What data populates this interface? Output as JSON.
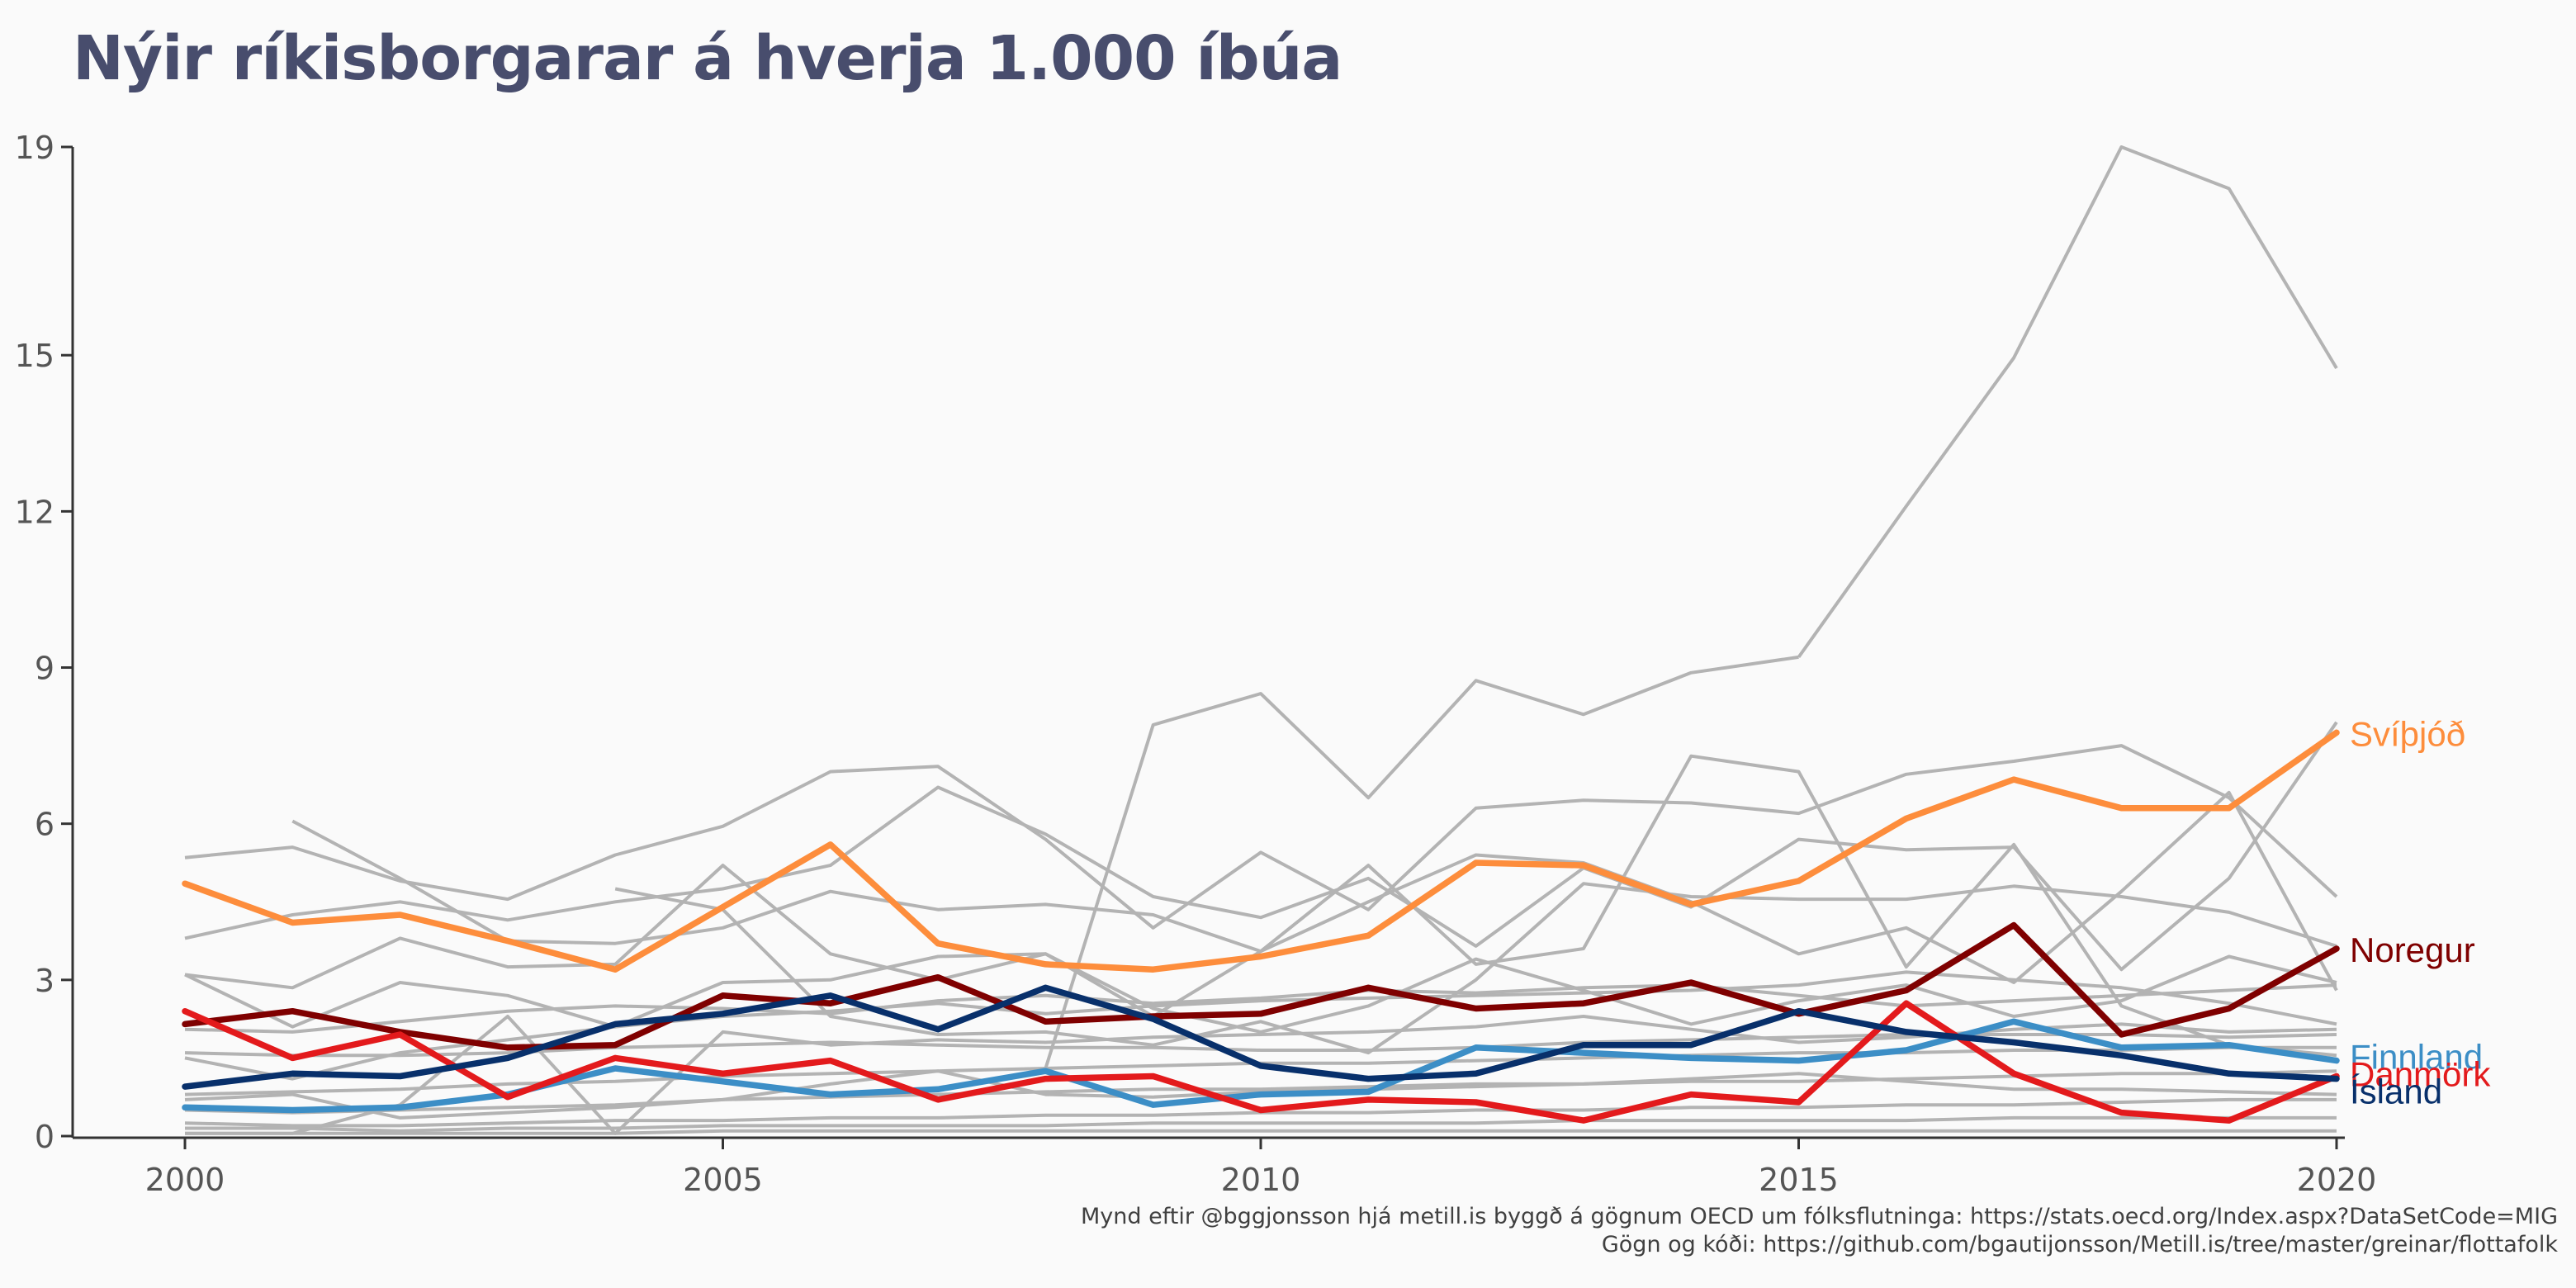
{
  "chart_data": {
    "type": "line",
    "title": "Nýir ríkisborgarar á hverja 1.000 íbúa",
    "xlabel": "",
    "ylabel": "",
    "x": [
      2000,
      2001,
      2002,
      2003,
      2004,
      2005,
      2006,
      2007,
      2008,
      2009,
      2010,
      2011,
      2012,
      2013,
      2014,
      2015,
      2016,
      2017,
      2018,
      2019,
      2020
    ],
    "xlim": [
      2000,
      2020
    ],
    "ylim": [
      0,
      19
    ],
    "x_ticks": [
      2000,
      2005,
      2010,
      2015,
      2020
    ],
    "y_ticks": [
      0,
      3,
      6,
      9,
      12,
      15,
      19
    ],
    "grid": false,
    "legend": "direct labels at line ends",
    "highlighted_series": [
      {
        "name": "Svíþjóð",
        "color": "#fd8d3c",
        "values": [
          4.85,
          4.1,
          4.25,
          3.75,
          3.2,
          4.4,
          5.6,
          3.7,
          3.3,
          3.2,
          3.45,
          3.85,
          5.25,
          5.2,
          4.45,
          4.9,
          6.1,
          6.85,
          6.3,
          6.3,
          7.75
        ]
      },
      {
        "name": "Noregur",
        "color": "#7f0000",
        "values": [
          2.15,
          2.4,
          2.0,
          1.7,
          1.75,
          2.7,
          2.55,
          3.05,
          2.2,
          2.3,
          2.35,
          2.85,
          2.45,
          2.55,
          2.95,
          2.35,
          2.8,
          4.05,
          1.95,
          2.45,
          3.6
        ]
      },
      {
        "name": "Finnland",
        "color": "#3c8ec6",
        "values": [
          0.55,
          0.5,
          0.55,
          0.8,
          1.3,
          1.05,
          0.8,
          0.9,
          1.25,
          0.6,
          0.8,
          0.85,
          1.7,
          1.6,
          1.5,
          1.45,
          1.65,
          2.2,
          1.7,
          1.75,
          1.45
        ]
      },
      {
        "name": "Danmörk",
        "color": "#e31a1c",
        "values": [
          2.4,
          1.5,
          1.95,
          0.75,
          1.5,
          1.2,
          1.45,
          0.7,
          1.1,
          1.15,
          0.5,
          0.7,
          0.65,
          0.3,
          0.8,
          0.65,
          2.55,
          1.2,
          0.45,
          0.3,
          1.15
        ]
      },
      {
        "name": "Ísland",
        "color": "#08306b",
        "values": [
          0.95,
          1.2,
          1.15,
          1.5,
          2.15,
          2.35,
          2.7,
          2.05,
          2.85,
          2.25,
          1.35,
          1.1,
          1.2,
          1.75,
          1.75,
          2.4,
          2.0,
          1.8,
          1.55,
          1.2,
          1.1
        ]
      }
    ],
    "background_series": [
      {
        "values": [
          null,
          null,
          null,
          null,
          null,
          null,
          null,
          null,
          null,
          null,
          null,
          null,
          null,
          null,
          null,
          9.2,
          12.1,
          14.95,
          19.0,
          18.2,
          14.75
        ]
      },
      {
        "values": [
          null,
          null,
          null,
          null,
          null,
          null,
          null,
          null,
          1.3,
          7.9,
          8.5,
          6.5,
          8.75,
          8.1,
          8.9,
          9.2,
          null,
          null,
          null,
          null,
          null
        ]
      },
      {
        "values": [
          5.35,
          5.55,
          4.9,
          4.55,
          5.4,
          5.95,
          7.0,
          7.1,
          5.7,
          4.0,
          5.45,
          4.35,
          6.3,
          6.45,
          6.4,
          6.2,
          6.95,
          7.2,
          7.5,
          6.5,
          4.6
        ]
      },
      {
        "values": [
          3.8,
          4.25,
          4.5,
          4.15,
          4.5,
          4.75,
          5.2,
          6.7,
          5.8,
          4.6,
          4.2,
          4.95,
          3.65,
          5.15,
          4.4,
          5.7,
          5.5,
          5.55,
          3.2,
          4.95,
          7.95
        ]
      },
      {
        "values": [
          null,
          6.05,
          4.95,
          3.75,
          3.7,
          4.0,
          4.7,
          4.35,
          4.45,
          4.25,
          3.55,
          4.5,
          5.4,
          5.25,
          4.5,
          3.5,
          4.0,
          2.95,
          4.7,
          6.6,
          2.8
        ]
      },
      {
        "values": [
          3.1,
          2.85,
          3.8,
          3.25,
          3.3,
          5.2,
          3.5,
          3.0,
          3.5,
          2.3,
          3.55,
          5.2,
          3.3,
          3.6,
          7.3,
          7.0,
          3.25,
          5.6,
          2.5,
          1.75,
          1.55
        ]
      },
      {
        "values": [
          null,
          null,
          null,
          null,
          4.75,
          4.35,
          2.3,
          1.95,
          2.0,
          1.75,
          2.2,
          1.6,
          3.0,
          4.85,
          4.6,
          4.55,
          4.55,
          4.8,
          4.6,
          4.3,
          3.65
        ]
      },
      {
        "values": [
          3.1,
          2.1,
          2.95,
          2.7,
          2.1,
          2.95,
          3.0,
          3.45,
          3.5,
          2.45,
          2.0,
          2.5,
          3.4,
          2.8,
          2.15,
          2.6,
          2.9,
          2.3,
          2.6,
          3.45,
          2.95
        ]
      },
      {
        "values": [
          1.5,
          1.1,
          1.6,
          1.85,
          2.1,
          2.3,
          2.4,
          2.55,
          2.35,
          2.5,
          2.6,
          2.65,
          2.7,
          2.75,
          2.8,
          2.9,
          3.15,
          3.0,
          2.85,
          2.55,
          2.15
        ]
      },
      {
        "values": [
          0.05,
          0.05,
          0.6,
          2.3,
          0.05,
          2.0,
          1.75,
          1.85,
          1.8,
          1.9,
          1.95,
          2.0,
          2.1,
          2.3,
          2.05,
          1.8,
          1.9,
          2.05,
          2.15,
          2.0,
          2.05
        ]
      },
      {
        "values": [
          1.6,
          1.55,
          1.55,
          1.6,
          1.7,
          1.75,
          1.8,
          1.75,
          1.7,
          1.7,
          1.65,
          1.65,
          1.7,
          1.8,
          1.85,
          1.9,
          1.95,
          1.95,
          1.95,
          1.9,
          1.95
        ]
      },
      {
        "values": [
          0.8,
          0.85,
          0.9,
          1.0,
          1.05,
          1.15,
          1.2,
          1.25,
          1.3,
          1.35,
          1.4,
          1.4,
          1.45,
          1.5,
          1.55,
          1.6,
          1.6,
          1.65,
          1.65,
          1.7,
          1.7
        ]
      },
      {
        "values": [
          0.5,
          0.45,
          0.5,
          0.55,
          0.6,
          0.7,
          0.75,
          0.8,
          0.85,
          0.9,
          0.9,
          0.95,
          1.0,
          1.0,
          1.05,
          1.05,
          1.1,
          1.15,
          1.2,
          1.2,
          1.25
        ]
      },
      {
        "values": [
          0.25,
          0.2,
          0.2,
          0.25,
          0.3,
          0.3,
          0.35,
          0.35,
          0.4,
          0.4,
          0.45,
          0.45,
          0.5,
          0.5,
          0.55,
          0.55,
          0.6,
          0.6,
          0.65,
          0.7,
          0.7
        ]
      },
      {
        "values": [
          0.15,
          0.15,
          0.1,
          0.15,
          0.15,
          0.2,
          0.2,
          0.2,
          0.2,
          0.25,
          0.25,
          0.25,
          0.25,
          0.3,
          0.3,
          0.3,
          0.3,
          0.35,
          0.35,
          0.35,
          0.35
        ]
      },
      {
        "values": [
          0.05,
          0.05,
          0.05,
          0.05,
          0.05,
          0.1,
          0.1,
          0.1,
          0.1,
          0.1,
          0.1,
          0.1,
          0.1,
          0.1,
          0.1,
          0.1,
          0.1,
          0.1,
          0.1,
          0.1,
          0.1
        ]
      },
      {
        "values": [
          0.7,
          0.8,
          0.35,
          0.45,
          0.55,
          0.7,
          1.0,
          1.25,
          0.8,
          0.75,
          0.85,
          0.9,
          0.95,
          1.0,
          1.1,
          1.2,
          1.05,
          0.9,
          0.9,
          0.85,
          0.8
        ]
      },
      {
        "values": [
          2.05,
          2.0,
          2.2,
          2.4,
          2.5,
          2.45,
          2.35,
          2.6,
          2.7,
          2.55,
          2.65,
          2.8,
          2.75,
          2.85,
          2.9,
          2.7,
          2.5,
          2.6,
          2.7,
          2.8,
          2.9
        ]
      }
    ]
  },
  "caption": {
    "line1": "Mynd eftir @bggjonsson hjá metill.is byggð á gögnum OECD um fólksflutninga: https://stats.oecd.org/Index.aspx?DataSetCode=MIG",
    "line2": "Gögn og kóði: https://github.com/bgautijonsson/Metill.is/tree/master/greinar/flottafolk"
  },
  "colors": {
    "title": "#484d6d",
    "background_line": "#b3b3b3",
    "axis": "#333333",
    "tick_label": "#555555"
  }
}
